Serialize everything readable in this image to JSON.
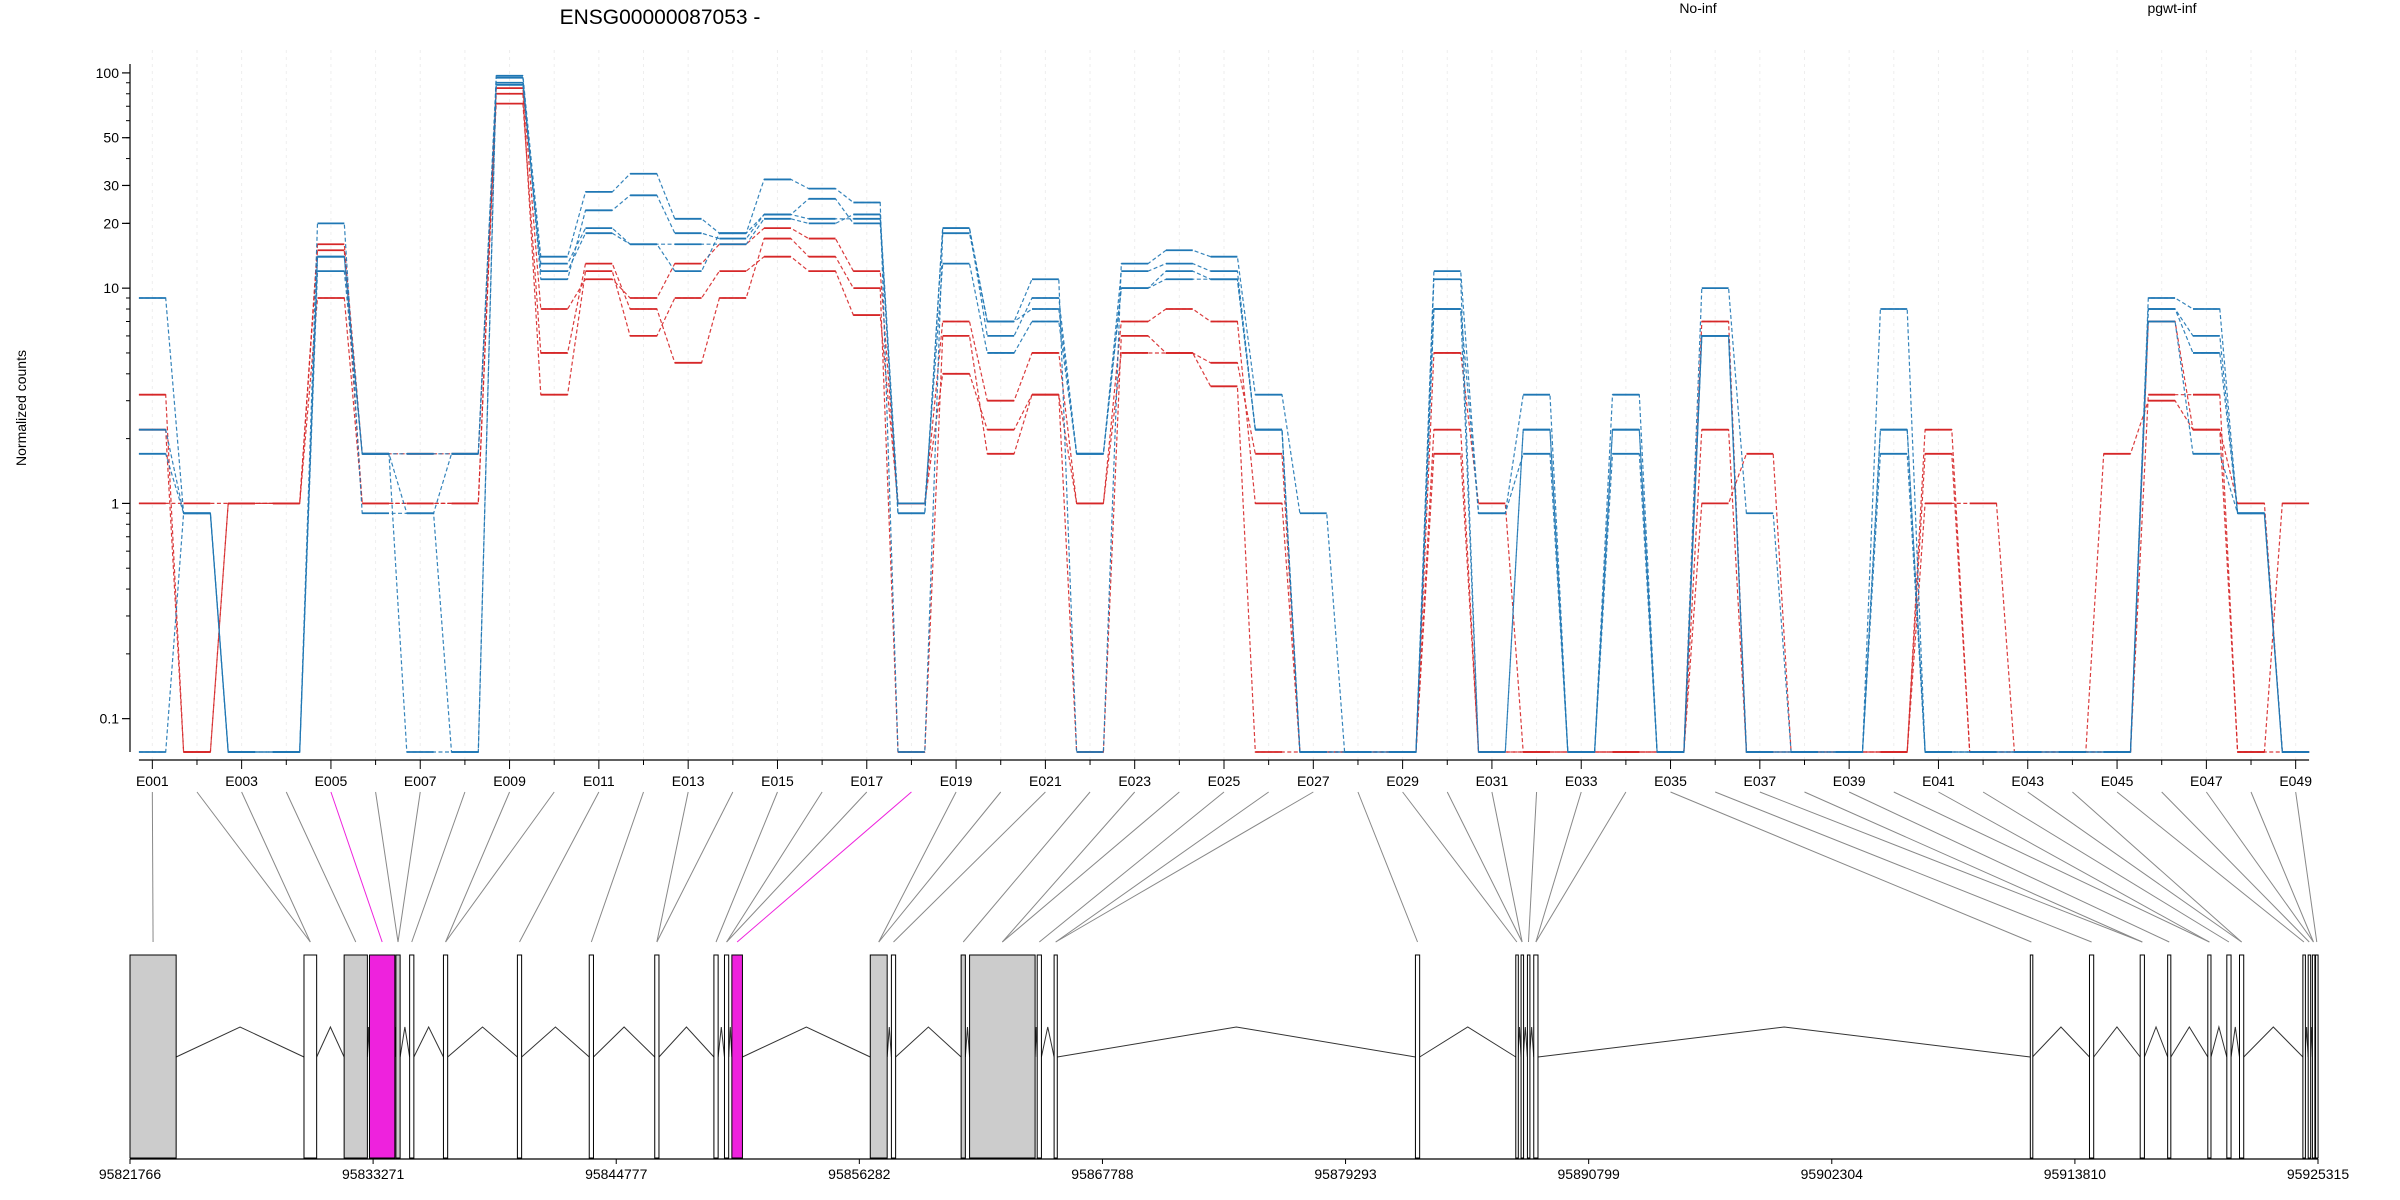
{
  "chart_data": {
    "type": "line",
    "title": "ENSG00000087053 -",
    "ylabel": "Normalized counts",
    "xlabel": "",
    "yscale": "log",
    "ylim": [
      0.07,
      110
    ],
    "yticks": [
      {
        "value": 100,
        "label": "100"
      },
      {
        "value": 50,
        "label": "50"
      },
      {
        "value": 30,
        "label": "30"
      },
      {
        "value": 20,
        "label": "20"
      },
      {
        "value": 10,
        "label": "10"
      },
      {
        "value": 1,
        "label": "1"
      },
      {
        "value": 0.1,
        "label": "0.1"
      }
    ],
    "grid": true,
    "legend": [
      {
        "label": "No-inf",
        "color": "#d62728"
      },
      {
        "label": "pgwt-inf",
        "color": "#1f77b4"
      }
    ],
    "highlight_color": "#ee22dd",
    "exon_fill": "#cccccc",
    "exon_count": 49,
    "xtick_labels": [
      "E001",
      "E003",
      "E005",
      "E007",
      "E009",
      "E011",
      "E013",
      "E015",
      "E017",
      "E019",
      "E021",
      "E023",
      "E025",
      "E027",
      "E029",
      "E031",
      "E033",
      "E035",
      "E037",
      "E039",
      "E041",
      "E043",
      "E045",
      "E047",
      "E049"
    ],
    "series": [
      {
        "group": "No-inf",
        "color": "#d62728",
        "values": [
          3.2,
          0.07,
          1,
          1,
          16,
          1.7,
          1.7,
          1.7,
          72,
          5,
          13,
          8,
          4.5,
          9,
          17,
          14,
          10,
          0.07,
          6,
          1.7,
          3.2,
          0.07,
          6,
          5,
          4.5,
          1.7,
          0.07,
          0.07,
          0.07,
          1.7,
          0.07,
          0.07,
          0.07,
          0.07,
          0.07,
          1,
          1.7,
          0.07,
          0.07,
          0.07,
          1,
          1,
          0.07,
          0.07,
          1.7,
          3,
          2.2,
          1,
          0.07
        ]
      },
      {
        "group": "No-inf",
        "color": "#d62728",
        "values": [
          2.2,
          0.07,
          1,
          1,
          9,
          1,
          1,
          1,
          85,
          8,
          11,
          9,
          13,
          16,
          19,
          17,
          12,
          1,
          7,
          3,
          5,
          1,
          7,
          8,
          7,
          1,
          0.07,
          0.07,
          0.07,
          2.2,
          0.07,
          0.07,
          0.07,
          0.07,
          0.07,
          2.2,
          0.07,
          0.07,
          0.07,
          0.07,
          2.2,
          0.07,
          0.07,
          0.07,
          0.07,
          3.2,
          3.2,
          0.07,
          1
        ]
      },
      {
        "group": "No-inf",
        "color": "#d62728",
        "values": [
          1,
          1,
          1,
          1,
          15,
          1,
          1,
          1,
          80,
          3.2,
          12,
          6,
          9,
          12,
          14,
          12,
          7.5,
          1,
          4,
          2.2,
          3.2,
          1,
          5,
          5,
          3.5,
          0.07,
          0.07,
          0.07,
          0.07,
          5,
          1,
          0.07,
          0.07,
          0.07,
          0.07,
          7,
          0.07,
          0.07,
          0.07,
          0.07,
          1.7,
          0.07,
          0.07,
          0.07,
          0.07,
          7,
          2.2,
          0.07,
          0.07
        ]
      },
      {
        "group": "pgwt-inf",
        "color": "#1f77b4",
        "values": [
          9,
          0.9,
          0.07,
          0.07,
          20,
          0.9,
          0.9,
          0.07,
          97,
          14,
          28,
          34,
          21,
          18,
          32,
          29,
          25,
          0.07,
          18,
          7,
          11,
          0.07,
          13,
          15,
          14,
          3.2,
          0.9,
          0.07,
          0.07,
          12,
          0.9,
          3.2,
          0.07,
          3.2,
          0.07,
          10,
          0.9,
          0.07,
          0.07,
          8,
          0.07,
          0.07,
          0.07,
          0.07,
          0.07,
          9,
          8,
          0.9,
          0.07
        ]
      },
      {
        "group": "pgwt-inf",
        "color": "#1f77b4",
        "values": [
          2.2,
          0.9,
          0.07,
          0.07,
          14,
          1.7,
          0.07,
          0.07,
          90,
          12,
          18,
          16,
          16,
          16,
          21,
          20,
          22,
          1,
          13,
          5,
          7,
          1.7,
          10,
          11,
          11,
          2.2,
          0.07,
          0.07,
          0.07,
          8,
          0.07,
          2.2,
          0.07,
          2.2,
          0.07,
          6,
          0.07,
          0.07,
          0.07,
          2.2,
          0.07,
          0.07,
          0.07,
          0.07,
          0.07,
          8,
          5,
          0.9,
          0.07
        ]
      },
      {
        "group": "pgwt-inf",
        "color": "#1f77b4",
        "values": [
          0.07,
          0.9,
          0.07,
          0.07,
          12,
          1.7,
          1.7,
          1.7,
          95,
          11,
          23,
          27,
          18,
          17,
          22,
          26,
          20,
          0.9,
          19,
          6,
          9,
          1.7,
          12,
          13,
          12,
          2.2,
          0.07,
          0.07,
          0.07,
          11,
          0.07,
          2.2,
          0.07,
          2.2,
          0.07,
          6,
          0.07,
          0.07,
          0.07,
          1.7,
          0.07,
          0.07,
          0.07,
          0.07,
          0.07,
          8,
          6,
          0.9,
          0.07
        ]
      },
      {
        "group": "pgwt-inf",
        "color": "#1f77b4",
        "values": [
          1.7,
          0.9,
          0.07,
          0.07,
          14,
          1.7,
          0.9,
          1.7,
          88,
          13,
          19,
          16,
          12,
          18,
          22,
          21,
          21,
          0.9,
          19,
          7,
          8,
          1.7,
          10,
          12,
          11,
          2.2,
          0.07,
          0.07,
          0.07,
          8,
          0.9,
          1.7,
          0.07,
          1.7,
          0.07,
          6,
          0.07,
          0.07,
          0.07,
          2.2,
          0.07,
          0.07,
          0.07,
          0.07,
          0.07,
          7,
          1.7,
          0.9,
          0.07
        ]
      }
    ],
    "gene_model": {
      "start": 95821766,
      "end": 95925315,
      "coordinate_labels": [
        "95821766",
        "95833271",
        "95844777",
        "95856282",
        "95867788",
        "95879293",
        "95890799",
        "95902304",
        "95913810",
        "95925315"
      ],
      "exons": [
        [
          95821766,
          95823950,
          "gray"
        ],
        [
          95830000,
          95830600,
          "white"
        ],
        [
          95831900,
          95833000,
          "gray"
        ],
        [
          95833100,
          95834300,
          "magenta"
        ],
        [
          95834350,
          95834550,
          "gray"
        ],
        [
          95835000,
          95835200,
          "white"
        ],
        [
          95836600,
          95836800,
          "white"
        ],
        [
          95840100,
          95840300,
          "white"
        ],
        [
          95843500,
          95843700,
          "white"
        ],
        [
          95846600,
          95846800,
          "white"
        ],
        [
          95849400,
          95849600,
          "white"
        ],
        [
          95849900,
          95850100,
          "white"
        ],
        [
          95850250,
          95850750,
          "magenta"
        ],
        [
          95856800,
          95857600,
          "gray"
        ],
        [
          95857800,
          95858000,
          "white"
        ],
        [
          95861100,
          95861300,
          "gray"
        ],
        [
          95861500,
          95864600,
          "gray"
        ],
        [
          95864700,
          95864900,
          "white"
        ],
        [
          95865500,
          95865650,
          "white"
        ],
        [
          95882600,
          95882800,
          "white"
        ],
        [
          95887350,
          95887450,
          "white"
        ],
        [
          95887600,
          95887700,
          "white"
        ],
        [
          95887900,
          95888000,
          "white"
        ],
        [
          95888200,
          95888400,
          "white"
        ],
        [
          95911700,
          95911800,
          "white"
        ],
        [
          95914500,
          95914700,
          "white"
        ],
        [
          95916900,
          95917100,
          "white"
        ],
        [
          95918200,
          95918350,
          "white"
        ],
        [
          95920100,
          95920250,
          "white"
        ],
        [
          95921000,
          95921200,
          "white"
        ],
        [
          95921600,
          95921800,
          "white"
        ],
        [
          95924600,
          95924700,
          "white"
        ],
        [
          95924850,
          95924950,
          "white"
        ],
        [
          95925050,
          95925150,
          "white"
        ],
        [
          95925200,
          95925315,
          "white"
        ]
      ]
    }
  }
}
